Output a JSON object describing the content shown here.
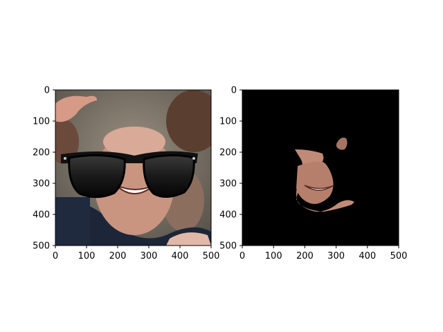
{
  "figure": {
    "background": "#ffffff",
    "axes_color": "#000000"
  },
  "chart_data": [
    {
      "type": "image",
      "title": "",
      "xlabel": "",
      "ylabel": "",
      "xlim": [
        0,
        500
      ],
      "ylim": [
        500,
        0
      ],
      "xticks": [
        0,
        100,
        200,
        300,
        400,
        500
      ],
      "yticks": [
        0,
        100,
        200,
        300,
        400,
        500
      ],
      "xtick_labels": [
        "0",
        "100",
        "200",
        "300",
        "400",
        "500"
      ],
      "ytick_labels": [
        "0",
        "100",
        "200",
        "300",
        "400",
        "500"
      ],
      "image_content": "photo-face-with-sunglasses",
      "colors": {
        "sunglasses": "#111111",
        "background_photo": "#7b7262",
        "jacket": "#1c2638",
        "skin": "#c99580"
      }
    },
    {
      "type": "image",
      "title": "",
      "xlabel": "",
      "ylabel": "",
      "xlim": [
        0,
        500
      ],
      "ylim": [
        500,
        0
      ],
      "xticks": [
        0,
        100,
        200,
        300,
        400,
        500
      ],
      "yticks": [
        0,
        100,
        200,
        300,
        400,
        500
      ],
      "xtick_labels": [
        "0",
        "100",
        "200",
        "300",
        "400",
        "500"
      ],
      "ytick_labels": [
        "0",
        "100",
        "200",
        "300",
        "400",
        "500"
      ],
      "image_content": "masked-face-region",
      "colors": {
        "mask_background": "#000000",
        "skin": "#c08a76"
      }
    }
  ]
}
